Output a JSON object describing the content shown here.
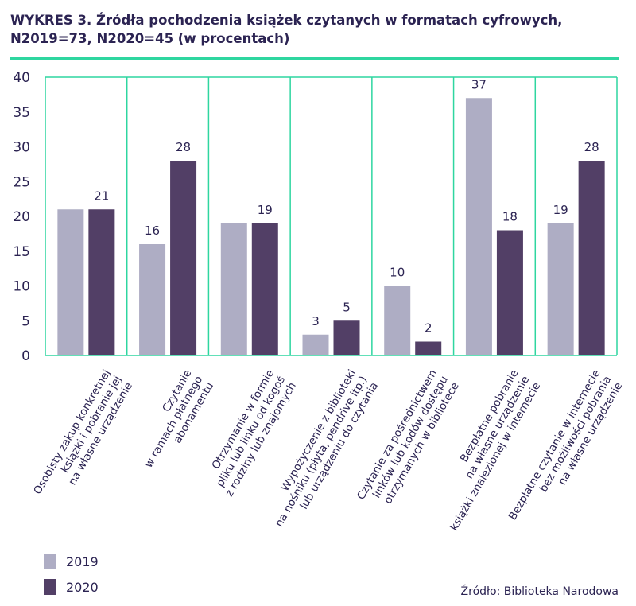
{
  "title": "WYKRES 3. Źródła pochodzenia książek czytanych w formatach cyfrowych, N2019=73, N2020=45 (w procentach)",
  "source": "Źródło: Biblioteka Narodowa",
  "colors": {
    "2019": "#aeadc4",
    "2020": "#523f66",
    "grid": "#2ed6a0"
  },
  "chart_data": {
    "type": "bar",
    "title": "WYKRES 3. Źródła pochodzenia książek czytanych w formatach cyfrowych, N2019=73, N2020=45 (w procentach)",
    "categories": [
      "Osobisty zakup konkretnej\nksiążki i pobranie jej\nna własne urządzenie",
      "Czytanie\nw ramach płatnego\nabonamentu",
      "Otrzymanie w formie\npliku lub linku od kogoś\nz rodziny lub znajomych",
      "Wypożyczenie z biblioteki\nna nośniku (płyta, pendrive itp.)\nlub urządzeniu do czytania",
      "Czytanie za pośrednictwem\nlinków lub kodów dostępu\notrzymanych w bibliotece",
      "Bezpłatne pobranie\nna własne urządzenie\nksiążki znalezionej w internecie",
      "Bezpłatne czytanie w internecie\nbez możliwości pobrania\nna własne urządzenie"
    ],
    "series": [
      {
        "name": "2019",
        "values": [
          21,
          16,
          19,
          3,
          10,
          37,
          19
        ]
      },
      {
        "name": "2020",
        "values": [
          21,
          28,
          19,
          5,
          2,
          18,
          28
        ]
      }
    ],
    "data_labels": [
      [
        "",
        "16",
        "",
        "3",
        "10",
        "37",
        "19"
      ],
      [
        "21",
        "28",
        "19",
        "5",
        "2",
        "18",
        "28"
      ]
    ],
    "ylim": [
      0,
      40
    ],
    "yticks": [
      "0",
      "5",
      "10",
      "15",
      "20",
      "25",
      "30",
      "35",
      "40"
    ],
    "grid": "vertical category separators",
    "legend": "bottom-left"
  }
}
